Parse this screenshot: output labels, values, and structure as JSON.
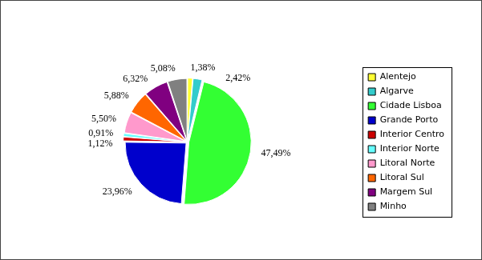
{
  "chart_data": {
    "type": "pie",
    "categories": [
      "Alentejo",
      "Algarve",
      "Cidade Lisboa",
      "Grande Porto",
      "Interior Centro",
      "Interior Norte",
      "Litoral Norte",
      "Litoral Sul",
      "Margem Sul",
      "Minho"
    ],
    "values": [
      1.38,
      2.42,
      47.49,
      23.96,
      1.12,
      0.91,
      5.5,
      5.88,
      6.32,
      5.08
    ],
    "value_labels": [
      "1,38%",
      "2,42%",
      "47,49%",
      "23,96%",
      "1,12%",
      "0,91%",
      "5,50%",
      "5,88%",
      "6,32%",
      "5,08%"
    ],
    "colors": [
      "#ffff33",
      "#33cccc",
      "#33ff33",
      "#0000cc",
      "#cc0000",
      "#66ffff",
      "#ff99cc",
      "#ff6600",
      "#800080",
      "#808080"
    ],
    "data_labels": true,
    "legend": "right"
  }
}
